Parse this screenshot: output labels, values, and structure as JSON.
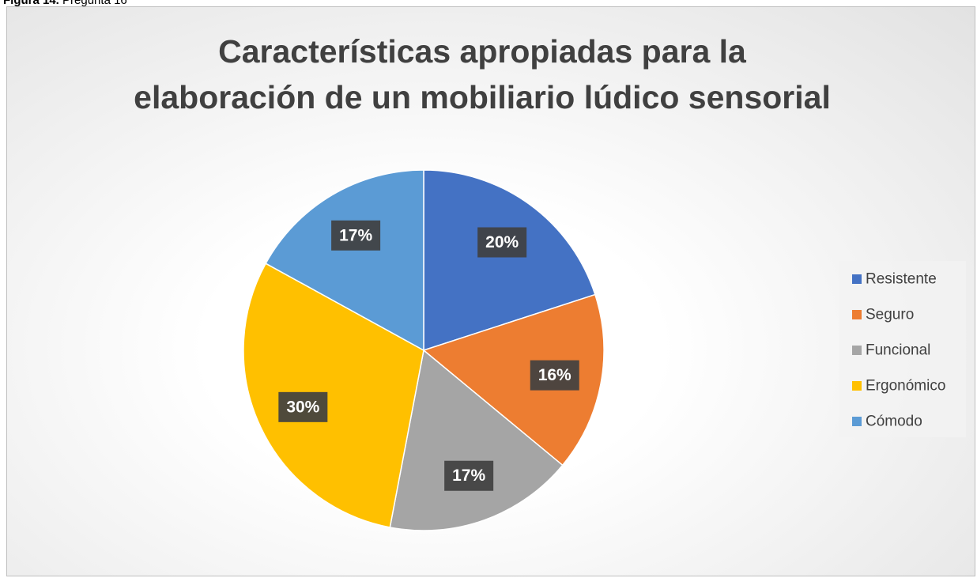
{
  "caption": {
    "label": "Figura 14.",
    "text": "Pregunta 16"
  },
  "chart_data": {
    "type": "pie",
    "title": "Características apropiadas para la elaboración de un mobiliario lúdico sensorial",
    "categories": [
      "Resistente",
      "Seguro",
      "Funcional",
      "Ergonómico",
      "Cómodo"
    ],
    "values": [
      20,
      16,
      17,
      30,
      17
    ],
    "value_labels": [
      "20%",
      "16%",
      "17%",
      "30%",
      "17%"
    ],
    "colors": [
      "#4472c4",
      "#ed7d31",
      "#a5a5a5",
      "#ffc000",
      "#5b9bd5"
    ],
    "legend": "right"
  }
}
